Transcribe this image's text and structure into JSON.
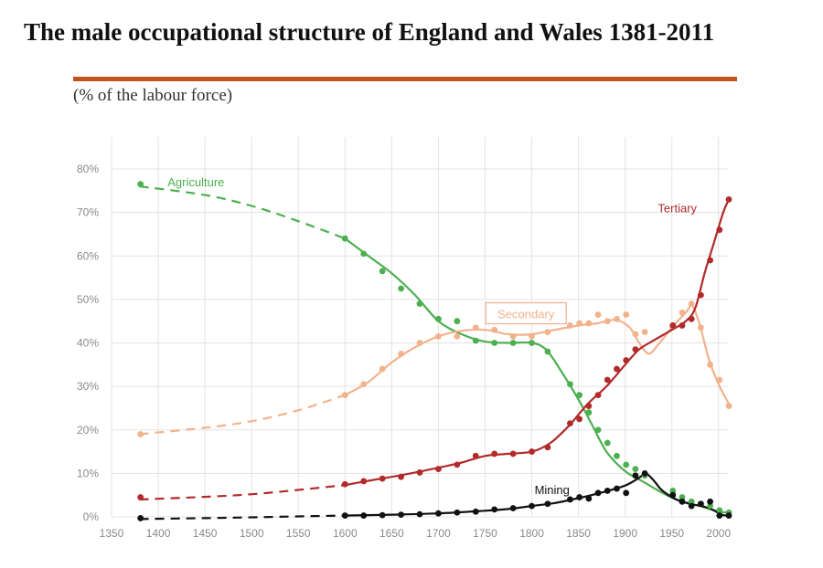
{
  "header": {
    "title": "The male occupational structure of England and Wales 1381-2011",
    "subtitle": "(% of the labour force)"
  },
  "colors": {
    "rule": "#c0531f",
    "grid": "#e3e3e3",
    "tick_text": "#8a8a8a"
  },
  "chart_data": {
    "type": "line",
    "title": "The male occupational structure of England and Wales 1381-2011",
    "subtitle": "(% of the labour force)",
    "xlabel": "",
    "ylabel": "",
    "xlim": [
      1350,
      2010
    ],
    "ylim": [
      0,
      85
    ],
    "x_ticks": [
      1350,
      1400,
      1450,
      1500,
      1550,
      1600,
      1650,
      1700,
      1750,
      1800,
      1850,
      1900,
      1950,
      2000
    ],
    "x_tick_labels": [
      "1350",
      "1400",
      "1450",
      "1500",
      "1550",
      "1600",
      "1650",
      "1700",
      "1750",
      "1800",
      "1850",
      "1900",
      "1950",
      "2000"
    ],
    "y_ticks": [
      0,
      10,
      20,
      30,
      40,
      50,
      60,
      70,
      80
    ],
    "y_tick_labels": [
      "0%",
      "10%",
      "20%",
      "30%",
      "40%",
      "50%",
      "60%",
      "70%",
      "80%"
    ],
    "grid": true,
    "series": [
      {
        "name": "Agriculture",
        "color": "#4caf50",
        "label_box": false,
        "label_at": [
          1410,
          76
        ],
        "dashed": [
          [
            1380,
            76
          ],
          [
            1450,
            74
          ],
          [
            1500,
            71.5
          ],
          [
            1550,
            68
          ],
          [
            1600,
            64
          ]
        ],
        "solid": [
          [
            1600,
            64
          ],
          [
            1625,
            60
          ],
          [
            1650,
            56
          ],
          [
            1675,
            51
          ],
          [
            1700,
            45
          ],
          [
            1725,
            42
          ],
          [
            1750,
            40.3
          ],
          [
            1775,
            40
          ],
          [
            1800,
            40
          ],
          [
            1815,
            38.5
          ],
          [
            1830,
            34
          ],
          [
            1850,
            27
          ],
          [
            1865,
            21
          ],
          [
            1880,
            15
          ],
          [
            1900,
            10.5
          ],
          [
            1920,
            8
          ],
          [
            1940,
            5.5
          ],
          [
            1960,
            3.5
          ],
          [
            1980,
            2.5
          ],
          [
            2000,
            1.2
          ],
          [
            2011,
            1
          ]
        ],
        "points": [
          [
            1381,
            76.5
          ],
          [
            1600,
            64
          ],
          [
            1620,
            60.5
          ],
          [
            1640,
            56.5
          ],
          [
            1660,
            52.5
          ],
          [
            1680,
            49
          ],
          [
            1700,
            45.5
          ],
          [
            1720,
            45
          ],
          [
            1740,
            40.5
          ],
          [
            1760,
            40
          ],
          [
            1780,
            40
          ],
          [
            1800,
            40
          ],
          [
            1817,
            38
          ],
          [
            1841,
            30.5
          ],
          [
            1851,
            28
          ],
          [
            1861,
            24
          ],
          [
            1871,
            20
          ],
          [
            1881,
            17
          ],
          [
            1891,
            14
          ],
          [
            1901,
            12
          ],
          [
            1911,
            11
          ],
          [
            1921,
            9.5
          ],
          [
            1951,
            6
          ],
          [
            1961,
            4.5
          ],
          [
            1971,
            3.5
          ],
          [
            1981,
            3
          ],
          [
            1991,
            2.5
          ],
          [
            2001,
            1.5
          ],
          [
            2011,
            1
          ]
        ]
      },
      {
        "name": "Secondary",
        "color": "#f2b28c",
        "label_box": true,
        "label_at": [
          1785,
          46.5
        ],
        "dashed": [
          [
            1380,
            19
          ],
          [
            1450,
            20.5
          ],
          [
            1500,
            22
          ],
          [
            1550,
            24.5
          ],
          [
            1600,
            28
          ]
        ],
        "solid": [
          [
            1600,
            28
          ],
          [
            1625,
            31
          ],
          [
            1650,
            35.5
          ],
          [
            1675,
            39
          ],
          [
            1700,
            41.5
          ],
          [
            1725,
            42.8
          ],
          [
            1750,
            43
          ],
          [
            1775,
            42
          ],
          [
            1800,
            42
          ],
          [
            1825,
            43
          ],
          [
            1850,
            44
          ],
          [
            1870,
            44.5
          ],
          [
            1890,
            45.3
          ],
          [
            1905,
            43.5
          ],
          [
            1915,
            40
          ],
          [
            1925,
            37.5
          ],
          [
            1935,
            39.5
          ],
          [
            1950,
            43.5
          ],
          [
            1965,
            47
          ],
          [
            1972,
            48.5
          ],
          [
            1980,
            44
          ],
          [
            1990,
            36
          ],
          [
            2000,
            30.5
          ],
          [
            2011,
            26
          ]
        ],
        "points": [
          [
            1381,
            19
          ],
          [
            1600,
            28
          ],
          [
            1620,
            30.5
          ],
          [
            1640,
            34
          ],
          [
            1660,
            37.5
          ],
          [
            1680,
            40
          ],
          [
            1700,
            41.5
          ],
          [
            1720,
            41.5
          ],
          [
            1740,
            43.5
          ],
          [
            1760,
            43
          ],
          [
            1780,
            41.5
          ],
          [
            1800,
            41.5
          ],
          [
            1817,
            42.5
          ],
          [
            1841,
            44
          ],
          [
            1851,
            44.5
          ],
          [
            1861,
            44.5
          ],
          [
            1871,
            46.5
          ],
          [
            1881,
            45
          ],
          [
            1891,
            45.5
          ],
          [
            1901,
            46.5
          ],
          [
            1911,
            42
          ],
          [
            1921,
            42.5
          ],
          [
            1951,
            44
          ],
          [
            1961,
            47
          ],
          [
            1971,
            49
          ],
          [
            1981,
            43.5
          ],
          [
            1991,
            35
          ],
          [
            2001,
            31.5
          ],
          [
            2011,
            25.5
          ]
        ]
      },
      {
        "name": "Tertiary",
        "color": "#b22a2a",
        "label_box": false,
        "label_at": [
          1935,
          70
        ],
        "dashed": [
          [
            1380,
            4
          ],
          [
            1450,
            4.6
          ],
          [
            1500,
            5.2
          ],
          [
            1550,
            6.2
          ],
          [
            1600,
            7.3
          ]
        ],
        "solid": [
          [
            1600,
            7.3
          ],
          [
            1625,
            8.3
          ],
          [
            1650,
            9.2
          ],
          [
            1675,
            10.2
          ],
          [
            1700,
            11.3
          ],
          [
            1725,
            12.5
          ],
          [
            1750,
            14
          ],
          [
            1775,
            14.5
          ],
          [
            1800,
            15
          ],
          [
            1820,
            17
          ],
          [
            1840,
            21
          ],
          [
            1860,
            26
          ],
          [
            1880,
            30
          ],
          [
            1900,
            35
          ],
          [
            1915,
            38.5
          ],
          [
            1930,
            40.5
          ],
          [
            1950,
            43
          ],
          [
            1965,
            45
          ],
          [
            1975,
            48
          ],
          [
            1985,
            56
          ],
          [
            1995,
            63
          ],
          [
            2005,
            70
          ],
          [
            2011,
            73
          ]
        ],
        "points": [
          [
            1381,
            4.5
          ],
          [
            1600,
            7.5
          ],
          [
            1620,
            8.2
          ],
          [
            1640,
            8.8
          ],
          [
            1660,
            9.2
          ],
          [
            1680,
            10.2
          ],
          [
            1700,
            11
          ],
          [
            1720,
            12
          ],
          [
            1740,
            14
          ],
          [
            1760,
            14.5
          ],
          [
            1780,
            14.5
          ],
          [
            1800,
            15
          ],
          [
            1817,
            16
          ],
          [
            1841,
            21.5
          ],
          [
            1851,
            22.5
          ],
          [
            1861,
            25.5
          ],
          [
            1871,
            28
          ],
          [
            1881,
            31.5
          ],
          [
            1891,
            34
          ],
          [
            1901,
            36
          ],
          [
            1911,
            38.5
          ],
          [
            1951,
            44
          ],
          [
            1961,
            44
          ],
          [
            1971,
            45.5
          ],
          [
            1981,
            51
          ],
          [
            1991,
            59
          ],
          [
            2001,
            66
          ],
          [
            2011,
            73
          ]
        ]
      },
      {
        "name": "Mining",
        "color": "#111111",
        "label_box": false,
        "label_at": [
          1803,
          5.3
        ],
        "dashed": [
          [
            1380,
            -0.5
          ],
          [
            1450,
            -0.3
          ],
          [
            1500,
            -0.1
          ],
          [
            1550,
            0.1
          ],
          [
            1600,
            0.3
          ]
        ],
        "solid": [
          [
            1600,
            0.3
          ],
          [
            1650,
            0.5
          ],
          [
            1700,
            0.8
          ],
          [
            1750,
            1.4
          ],
          [
            1775,
            1.8
          ],
          [
            1800,
            2.5
          ],
          [
            1825,
            3.2
          ],
          [
            1850,
            4.3
          ],
          [
            1875,
            5.6
          ],
          [
            1900,
            7.2
          ],
          [
            1915,
            9
          ],
          [
            1922,
            10
          ],
          [
            1930,
            8.5
          ],
          [
            1940,
            6
          ],
          [
            1955,
            4
          ],
          [
            1970,
            3
          ],
          [
            1985,
            2.3
          ],
          [
            1995,
            1.5
          ],
          [
            2003,
            0.5
          ],
          [
            2011,
            0.3
          ]
        ],
        "points": [
          [
            1381,
            -0.3
          ],
          [
            1600,
            0.3
          ],
          [
            1620,
            0.3
          ],
          [
            1640,
            0.4
          ],
          [
            1660,
            0.5
          ],
          [
            1680,
            0.6
          ],
          [
            1700,
            0.8
          ],
          [
            1720,
            1
          ],
          [
            1740,
            1.2
          ],
          [
            1760,
            1.7
          ],
          [
            1780,
            2
          ],
          [
            1800,
            2.5
          ],
          [
            1817,
            3
          ],
          [
            1841,
            4
          ],
          [
            1851,
            4.5
          ],
          [
            1861,
            4.2
          ],
          [
            1871,
            5.5
          ],
          [
            1881,
            6
          ],
          [
            1891,
            6.5
          ],
          [
            1901,
            5.5
          ],
          [
            1911,
            9.5
          ],
          [
            1921,
            10
          ],
          [
            1951,
            5
          ],
          [
            1961,
            3.5
          ],
          [
            1971,
            2.5
          ],
          [
            1981,
            3
          ],
          [
            1991,
            3.5
          ],
          [
            2001,
            0.3
          ],
          [
            2011,
            0.3
          ]
        ]
      }
    ]
  }
}
